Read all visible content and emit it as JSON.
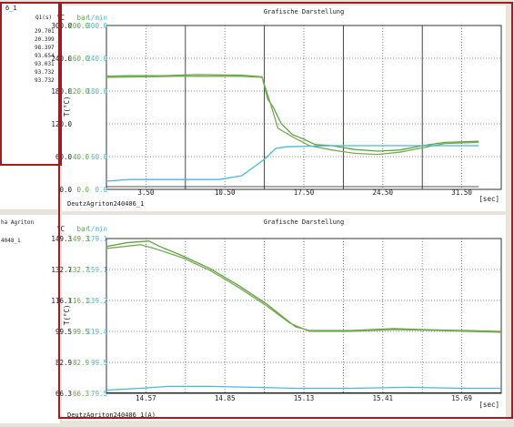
{
  "colors": {
    "frame": "#9e1c22",
    "green": "#5aa83c",
    "cyan": "#4ab8dc",
    "olive": "#7da855",
    "dark": "#1a1a1a",
    "grid": "#666666"
  },
  "left_panel_top": {
    "title": "6_1",
    "col_header": "Q1(s)",
    "values": [
      "29.701",
      "20.399",
      "98.397",
      "93.654",
      "93.031",
      "93.732",
      "93.732"
    ]
  },
  "left_panel_bottom": {
    "title": "ha Agriton",
    "subtitle": "4048_1"
  },
  "chart_data": [
    {
      "type": "line",
      "title": "Grafische Darstellung",
      "footer": "DeutzAgriton240406_1",
      "xlabel": "[sec]",
      "ylabel": "T(°C)",
      "xlim": [
        0,
        35
      ],
      "x_ticks": [
        "3.50",
        "10.50",
        "17.50",
        "24.50",
        "31.50"
      ],
      "y_header": [
        "°C",
        "bar",
        "l/min"
      ],
      "y_ticks_c": [
        "300.0",
        "240.0",
        "180.0",
        "120.0",
        "60.0",
        "0.0"
      ],
      "y_ticks_bar": [
        "200.0",
        "160.0",
        "120.0",
        "",
        "40.0",
        "0.0"
      ],
      "y_ticks_lmin": [
        "300.0",
        "240.0",
        "180.0",
        "",
        "60.0",
        "0.0"
      ],
      "ylim": [
        0,
        300
      ],
      "series": [
        {
          "color": "green",
          "points": [
            [
              0,
              207
            ],
            [
              2,
              208
            ],
            [
              5,
              208
            ],
            [
              8,
              210
            ],
            [
              12,
              209
            ],
            [
              13.8,
              206
            ],
            [
              14.3,
              165
            ],
            [
              14.8,
              150
            ],
            [
              15.5,
              120
            ],
            [
              16.5,
              100
            ],
            [
              17.5,
              92
            ],
            [
              18.5,
              82
            ],
            [
              20,
              80
            ],
            [
              22,
              73
            ],
            [
              24,
              70
            ],
            [
              26,
              72
            ],
            [
              28,
              80
            ],
            [
              30,
              86
            ],
            [
              33,
              88
            ]
          ]
        },
        {
          "color": "olive",
          "points": [
            [
              0,
              205
            ],
            [
              6,
              207
            ],
            [
              12,
              207
            ],
            [
              13.8,
              205
            ],
            [
              14.5,
              160
            ],
            [
              15.2,
              112
            ],
            [
              16.5,
              96
            ],
            [
              18,
              80
            ],
            [
              20,
              72
            ],
            [
              22,
              66
            ],
            [
              24,
              64
            ],
            [
              26,
              68
            ],
            [
              28,
              76
            ],
            [
              30,
              84
            ],
            [
              33,
              86
            ]
          ]
        },
        {
          "color": "cyan",
          "points": [
            [
              0,
              15
            ],
            [
              2,
              18
            ],
            [
              6,
              18
            ],
            [
              10,
              18
            ],
            [
              12,
              25
            ],
            [
              13,
              40
            ],
            [
              14,
              55
            ],
            [
              15,
              75
            ],
            [
              16,
              78
            ],
            [
              20,
              80
            ],
            [
              25,
              80
            ],
            [
              30,
              80
            ],
            [
              33,
              80
            ]
          ]
        },
        {
          "color": "dark",
          "points": [
            [
              0,
              5
            ],
            [
              33,
              5
            ]
          ]
        }
      ]
    },
    {
      "type": "line",
      "title": "Grafische Darstellung",
      "footer": "DeutzAgriton240406_1(A)",
      "xlabel": "[sec]",
      "ylabel": "T(°C)",
      "xlim": [
        14.43,
        15.83
      ],
      "x_ticks": [
        "14.57",
        "14.85",
        "15.13",
        "15.41",
        "15.69"
      ],
      "y_header": [
        "°C",
        "bar",
        "l/min"
      ],
      "y_ticks_c": [
        "149.3",
        "132.7",
        "116.1",
        "99.5",
        "82.9",
        "66.3"
      ],
      "y_ticks_bar": [
        "149.3",
        "132.7",
        "116.1",
        "99.5",
        "82.9",
        "66.3"
      ],
      "y_ticks_lmin": [
        "179.1",
        "159.1",
        "139.2",
        "119.4",
        "99.5",
        "79.5"
      ],
      "ylim": [
        66.3,
        149.3
      ],
      "series": [
        {
          "color": "green",
          "points": [
            [
              14.43,
              145
            ],
            [
              14.5,
              147
            ],
            [
              14.58,
              148
            ],
            [
              14.62,
              145
            ],
            [
              14.7,
              140
            ],
            [
              14.8,
              133
            ],
            [
              14.9,
              124
            ],
            [
              15.0,
              114
            ],
            [
              15.05,
              108
            ],
            [
              15.1,
              102
            ],
            [
              15.15,
              100
            ],
            [
              15.3,
              100
            ],
            [
              15.45,
              101
            ],
            [
              15.55,
              100.5
            ],
            [
              15.7,
              100
            ],
            [
              15.83,
              99.5
            ]
          ]
        },
        {
          "color": "olive",
          "points": [
            [
              14.43,
              144
            ],
            [
              14.55,
              146
            ],
            [
              14.6,
              144
            ],
            [
              14.7,
              139
            ],
            [
              14.8,
              132
            ],
            [
              14.9,
              123
            ],
            [
              15.0,
              113
            ],
            [
              15.08,
              104
            ],
            [
              15.15,
              99.5
            ],
            [
              15.3,
              99.5
            ],
            [
              15.45,
              100.5
            ],
            [
              15.6,
              100
            ],
            [
              15.83,
              99
            ]
          ]
        },
        {
          "color": "cyan",
          "points": [
            [
              14.43,
              68
            ],
            [
              14.55,
              69
            ],
            [
              14.65,
              70
            ],
            [
              14.8,
              70
            ],
            [
              14.95,
              69.5
            ],
            [
              15.1,
              69
            ],
            [
              15.3,
              69
            ],
            [
              15.5,
              69.5
            ],
            [
              15.7,
              69
            ],
            [
              15.83,
              69
            ]
          ]
        },
        {
          "color": "dark",
          "points": [
            [
              14.43,
              66.6
            ],
            [
              15.83,
              66.6
            ]
          ]
        }
      ]
    }
  ]
}
